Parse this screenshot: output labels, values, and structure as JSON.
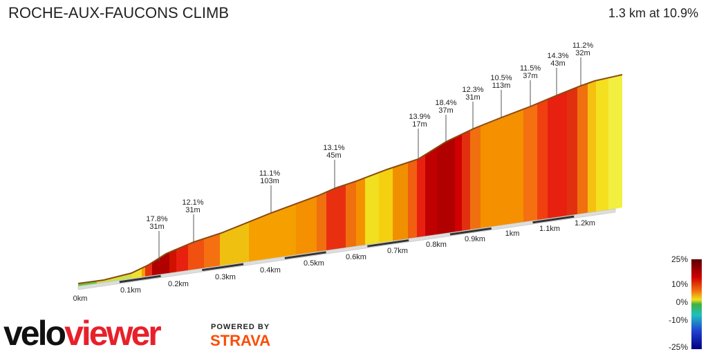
{
  "header": {
    "title": "ROCHE-AUX-FAUCONS CLIMB",
    "summary": "1.3 km at 10.9%"
  },
  "distance_labels": [
    "0km",
    "0.1km",
    "0.2km",
    "0.3km",
    "0.4km",
    "0.5km",
    "0.6km",
    "0.7km",
    "0.8km",
    "0.9km",
    "1km",
    "1.1km",
    "1.2km"
  ],
  "annotations": [
    {
      "grade": "17.8%",
      "length": "31m"
    },
    {
      "grade": "12.1%",
      "length": "31m"
    },
    {
      "grade": "11.1%",
      "length": "103m"
    },
    {
      "grade": "13.1%",
      "length": "45m"
    },
    {
      "grade": "13.9%",
      "length": "17m"
    },
    {
      "grade": "18.4%",
      "length": "37m"
    },
    {
      "grade": "12.3%",
      "length": "31m"
    },
    {
      "grade": "10.5%",
      "length": "113m"
    },
    {
      "grade": "11.5%",
      "length": "37m"
    },
    {
      "grade": "14.3%",
      "length": "43m"
    },
    {
      "grade": "11.2%",
      "length": "32m"
    }
  ],
  "legend": {
    "labels": [
      "25%",
      "10%",
      "0%",
      "-10%",
      "-25%"
    ]
  },
  "branding": {
    "logo_a": "velo",
    "logo_b": "viewer",
    "powered": "POWERED BY",
    "strava": "STRAVA"
  }
}
